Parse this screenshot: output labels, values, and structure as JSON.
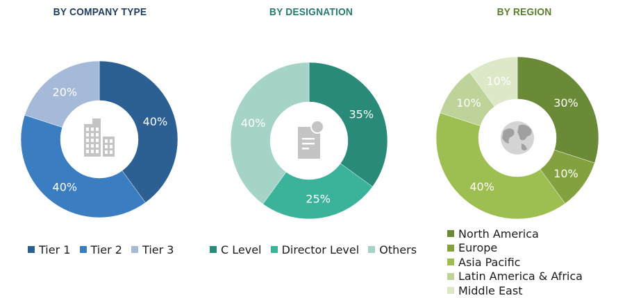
{
  "chart_data": [
    {
      "type": "pie",
      "title": "BY COMPANY TYPE",
      "title_color": "#1f3b5c",
      "center_icon": "office-buildings-icon",
      "slices": [
        {
          "name": "Tier 1",
          "value": 40,
          "label": "40%",
          "color": "#2c5f92"
        },
        {
          "name": "Tier 2",
          "value": 40,
          "label": "40%",
          "color": "#3b7dc1"
        },
        {
          "name": "Tier 3",
          "value": 20,
          "label": "20%",
          "color": "#a5b9d8"
        }
      ]
    },
    {
      "type": "pie",
      "title": "BY DESIGNATION",
      "title_color": "#2a7a6c",
      "center_icon": "certificate-document-icon",
      "slices": [
        {
          "name": "C Level",
          "value": 35,
          "label": "35%",
          "color": "#2a8a78"
        },
        {
          "name": "Director Level",
          "value": 25,
          "label": "25%",
          "color": "#3bb39b"
        },
        {
          "name": "Others",
          "value": 40,
          "label": "40%",
          "color": "#a6d3c8"
        }
      ]
    },
    {
      "type": "pie",
      "title": "BY REGION",
      "title_color": "#5b7d2e",
      "center_icon": "globe-icon",
      "slices": [
        {
          "name": "North America",
          "value": 30,
          "label": "30%",
          "color": "#6b8a37"
        },
        {
          "name": "Europe",
          "value": 10,
          "label": "10%",
          "color": "#83a23f"
        },
        {
          "name": "Asia Pacific",
          "value": 40,
          "label": "40%",
          "color": "#9dbe50"
        },
        {
          "name": "Latin America & Africa",
          "value": 10,
          "label": "10%",
          "color": "#bed39a"
        },
        {
          "name": "Middle East",
          "value": 10,
          "label": "10%",
          "color": "#dde8c9"
        }
      ]
    }
  ]
}
